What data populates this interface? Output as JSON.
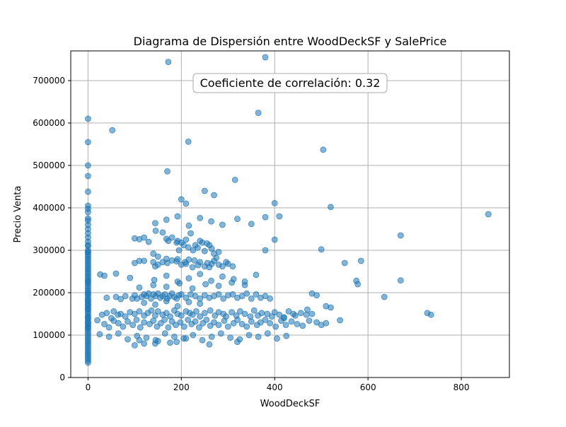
{
  "chart_data": {
    "type": "scatter",
    "title": "Diagrama de Dispersión entre WoodDeckSF y SalePrice",
    "xlabel": "WoodDeckSF",
    "ylabel": "Precio Venta",
    "xlim": [
      -37,
      903
    ],
    "ylim": [
      0,
      770000
    ],
    "xticks": [
      0,
      200,
      400,
      600,
      800
    ],
    "yticks": [
      0,
      100000,
      200000,
      300000,
      400000,
      500000,
      600000,
      700000
    ],
    "grid": true,
    "annotation": "Coeficiente de correlación: 0.32",
    "marker_color": "#1f77b4",
    "marker_alpha": 0.55,
    "series": [
      {
        "x": [
          0,
          0,
          0,
          0,
          0,
          0,
          0,
          0,
          0,
          0,
          0,
          0,
          0,
          0,
          0,
          0,
          0,
          0,
          0,
          0,
          0,
          0,
          0,
          0,
          0,
          0,
          0,
          0,
          0,
          0,
          0,
          0,
          0,
          0,
          0,
          0,
          0,
          0,
          0,
          0,
          0,
          0,
          0,
          0,
          0,
          0,
          0,
          0,
          0,
          0,
          0,
          0,
          0,
          0,
          0,
          0,
          0,
          0,
          0,
          0,
          0,
          0,
          0,
          0,
          0,
          0,
          0,
          0,
          0,
          0,
          0,
          0,
          0,
          0,
          0,
          0,
          0,
          0,
          0,
          0,
          52,
          26,
          35,
          60,
          100,
          90,
          110,
          120,
          130,
          140,
          145,
          150,
          160,
          168,
          172,
          180,
          190,
          192,
          195,
          200,
          205,
          210,
          215,
          220,
          225,
          230,
          235,
          240,
          245,
          250,
          255,
          260,
          265,
          270,
          275,
          280,
          100,
          110,
          120,
          140,
          144,
          150,
          160,
          168,
          170,
          180,
          190,
          192,
          200,
          208,
          210,
          216,
          224,
          228,
          236,
          240,
          250,
          256,
          260,
          265,
          270,
          280,
          288,
          296,
          300,
          310,
          40,
          60,
          70,
          80,
          95,
          100,
          105,
          115,
          120,
          125,
          130,
          135,
          140,
          145,
          150,
          155,
          160,
          165,
          170,
          175,
          180,
          185,
          190,
          195,
          200,
          210,
          220,
          230,
          240,
          250,
          260,
          270,
          280,
          290,
          300,
          310,
          320,
          330,
          340,
          350,
          360,
          370,
          380,
          390,
          30,
          40,
          50,
          55,
          64,
          70,
          80,
          90,
          100,
          110,
          120,
          128,
          136,
          144,
          150,
          160,
          168,
          176,
          185,
          192,
          200,
          210,
          218,
          224,
          232,
          240,
          250,
          262,
          272,
          280,
          290,
          296,
          308,
          318,
          326,
          336,
          348,
          356,
          364,
          372,
          384,
          394,
          400,
          410,
          420,
          430,
          444,
          456,
          468,
          480,
          20,
          35,
          45,
          55,
          65,
          75,
          85,
          96,
          104,
          112,
          120,
          132,
          140,
          148,
          156,
          164,
          172,
          180,
          188,
          198,
          206,
          214,
          222,
          230,
          238,
          246,
          254,
          262,
          270,
          280,
          292,
          300,
          312,
          320,
          330,
          340,
          350,
          362,
          370,
          380,
          390,
          402,
          414,
          424,
          436,
          448,
          460,
          474,
          490,
          500,
          510,
          25,
          45,
          65,
          85,
          105,
          125,
          145,
          165,
          185,
          205,
          225,
          245,
          265,
          285,
          305,
          325,
          345,
          365,
          385,
          405,
          425,
          142,
          168,
          192,
          216,
          240,
          264,
          288,
          312,
          336,
          360,
          110,
          140,
          168,
          196,
          224,
          252,
          280,
          308,
          336,
          120,
          144,
          168,
          192,
          216,
          240,
          144,
          168,
          192,
          216,
          240,
          264,
          288,
          320,
          350,
          380,
          315,
          365,
          380,
          172,
          504,
          215,
          170,
          250,
          270,
          200,
          210,
          400,
          410,
          520,
          500,
          550,
          585,
          575,
          578,
          635,
          670,
          670,
          727,
          735,
          858,
          380,
          400,
          420,
          440,
          470,
          480,
          490,
          510,
          520,
          540,
          176,
          190,
          144,
          150,
          210,
          260,
          320,
          100,
          110,
          120
        ],
        "y": [
          610000,
          555000,
          500000,
          475000,
          438000,
          405000,
          398000,
          390000,
          375000,
          370000,
          360000,
          350000,
          340000,
          330000,
          320000,
          310000,
          300000,
          295000,
          290000,
          285000,
          280000,
          275000,
          270000,
          265000,
          260000,
          255000,
          250000,
          245000,
          240000,
          235000,
          230000,
          225000,
          220000,
          215000,
          210000,
          205000,
          200000,
          195000,
          190000,
          185000,
          180000,
          175000,
          170000,
          165000,
          160000,
          155000,
          150000,
          145000,
          140000,
          135000,
          130000,
          125000,
          120000,
          115000,
          110000,
          105000,
          100000,
          95000,
          90000,
          85000,
          80000,
          75000,
          70000,
          65000,
          60000,
          55000,
          50000,
          45000,
          40000,
          35000,
          312000,
          296000,
          226000,
          198000,
          182000,
          172000,
          162000,
          142000,
          128000,
          118000,
          583000,
          243000,
          240000,
          245000,
          328000,
          235000,
          326000,
          330000,
          320000,
          292000,
          346000,
          285000,
          342000,
          327000,
          322000,
          330000,
          318000,
          322000,
          300000,
          318000,
          312000,
          325000,
          307000,
          340000,
          300000,
          312000,
          306000,
          322000,
          318000,
          298000,
          316000,
          312000,
          304000,
          292000,
          282000,
          296000,
          270000,
          275000,
          275000,
          272000,
          262000,
          266000,
          272000,
          280000,
          270000,
          276000,
          274000,
          279000,
          266000,
          272000,
          268000,
          278000,
          260000,
          276000,
          265000,
          272000,
          262000,
          270000,
          260000,
          268000,
          275000,
          266000,
          262000,
          272000,
          268000,
          262000,
          188000,
          190000,
          185000,
          192000,
          186000,
          194000,
          186000,
          190000,
          196000,
          192000,
          198000,
          186000,
          196000,
          192000,
          198000,
          188000,
          192000,
          196000,
          186000,
          192000,
          198000,
          190000,
          186000,
          194000,
          196000,
          188000,
          196000,
          192000,
          186000,
          194000,
          188000,
          192000,
          196000,
          186000,
          194000,
          196000,
          188000,
          192000,
          198000,
          186000,
          196000,
          188000,
          192000,
          186000,
          148000,
          152000,
          140000,
          156000,
          148000,
          150000,
          144000,
          154000,
          150000,
          156000,
          146000,
          152000,
          158000,
          146000,
          156000,
          148000,
          152000,
          144000,
          158000,
          150000,
          146000,
          156000,
          152000,
          148000,
          156000,
          144000,
          152000,
          158000,
          146000,
          154000,
          150000,
          144000,
          154000,
          146000,
          156000,
          150000,
          144000,
          158000,
          146000,
          152000,
          150000,
          144000,
          154000,
          148000,
          140000,
          156000,
          146000,
          152000,
          148000,
          150000,
          135000,
          126000,
          118000,
          134000,
          128000,
          120000,
          132000,
          124000,
          136000,
          118000,
          130000,
          126000,
          134000,
          120000,
          128000,
          136000,
          118000,
          132000,
          124000,
          130000,
          120000,
          136000,
          126000,
          132000,
          118000,
          128000,
          136000,
          122000,
          130000,
          124000,
          134000,
          120000,
          128000,
          136000,
          126000,
          120000,
          132000,
          124000,
          130000,
          136000,
          128000,
          120000,
          134000,
          124000,
          132000,
          126000,
          122000,
          134000,
          130000,
          124000,
          128000,
          102000,
          96000,
          104000,
          90000,
          98000,
          94000,
          88000,
          104000,
          96000,
          92000,
          100000,
          88000,
          96000,
          104000,
          94000,
          90000,
          100000,
          96000,
          104000,
          92000,
          98000,
          230000,
          240000,
          226000,
          234000,
          244000,
          228000,
          238000,
          232000,
          226000,
          242000,
          212000,
          218000,
          214000,
          222000,
          210000,
          220000,
          216000,
          224000,
          218000,
          176000,
          172000,
          180000,
          168000,
          178000,
          174000,
          364000,
          372000,
          380000,
          358000,
          376000,
          368000,
          360000,
          374000,
          362000,
          378000,
          466000,
          624000,
          755000,
          744000,
          537000,
          556000,
          486000,
          440000,
          430000,
          420000,
          410000,
          411000,
          380000,
          402000,
          302000,
          270000,
          275000,
          228000,
          220000,
          190000,
          335000,
          229000,
          152000,
          148000,
          385000,
          300000,
          325000,
          142000,
          150000,
          160000,
          198000,
          194000,
          168000,
          165000,
          135000,
          82000,
          84000,
          80000,
          86000,
          92000,
          78000,
          84000,
          76000,
          88000,
          80000
        ]
      }
    ]
  }
}
